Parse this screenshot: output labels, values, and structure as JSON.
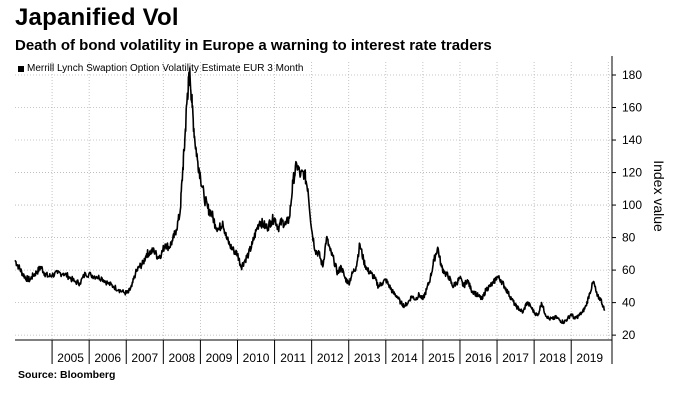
{
  "header": {
    "title": "Japanified Vol",
    "subtitle": "Death of bond volatility in Europe a warning to interest rate traders"
  },
  "footer": {
    "source": "Source: Bloomberg"
  },
  "chart_data": {
    "type": "line",
    "title": "Japanified Vol",
    "subtitle": "Death of bond volatility in Europe a warning to interest rate traders",
    "xlabel": "",
    "ylabel": "Index value",
    "xlim": [
      2004.0,
      2020.1
    ],
    "ylim": [
      17,
      188
    ],
    "yticks": [
      20,
      40,
      60,
      80,
      100,
      120,
      140,
      160,
      180
    ],
    "xtick_labels": [
      "2005",
      "2006",
      "2007",
      "2008",
      "2009",
      "2010",
      "2011",
      "2012",
      "2013",
      "2014",
      "2015",
      "2016",
      "2017",
      "2018",
      "2019"
    ],
    "grid": true,
    "legend_position": "top-left",
    "series": [
      {
        "name": "Merrill Lynch Swaption Option Volatility Estimate EUR 3 Month",
        "color": "#000000",
        "x": [
          2004.0,
          2004.1,
          2004.2,
          2004.3,
          2004.4,
          2004.5,
          2004.6,
          2004.7,
          2004.8,
          2004.9,
          2005.0,
          2005.15,
          2005.3,
          2005.45,
          2005.6,
          2005.75,
          2005.9,
          2006.05,
          2006.2,
          2006.35,
          2006.5,
          2006.65,
          2006.8,
          2006.95,
          2007.05,
          2007.15,
          2007.25,
          2007.35,
          2007.45,
          2007.55,
          2007.65,
          2007.75,
          2007.85,
          2007.95,
          2008.05,
          2008.15,
          2008.25,
          2008.35,
          2008.45,
          2008.52,
          2008.58,
          2008.64,
          2008.68,
          2008.72,
          2008.78,
          2008.85,
          2008.92,
          2009.0,
          2009.1,
          2009.2,
          2009.3,
          2009.4,
          2009.5,
          2009.6,
          2009.7,
          2009.8,
          2009.9,
          2010.0,
          2010.1,
          2010.2,
          2010.3,
          2010.4,
          2010.5,
          2010.6,
          2010.7,
          2010.8,
          2010.9,
          2011.0,
          2011.1,
          2011.2,
          2011.3,
          2011.4,
          2011.5,
          2011.6,
          2011.7,
          2011.8,
          2011.9,
          2012.0,
          2012.1,
          2012.2,
          2012.3,
          2012.4,
          2012.5,
          2012.6,
          2012.7,
          2012.8,
          2012.9,
          2013.0,
          2013.1,
          2013.2,
          2013.3,
          2013.4,
          2013.5,
          2013.6,
          2013.7,
          2013.8,
          2013.9,
          2014.0,
          2014.1,
          2014.2,
          2014.3,
          2014.4,
          2014.5,
          2014.6,
          2014.7,
          2014.8,
          2014.9,
          2015.0,
          2015.1,
          2015.2,
          2015.3,
          2015.4,
          2015.5,
          2015.6,
          2015.7,
          2015.8,
          2015.9,
          2016.0,
          2016.1,
          2016.2,
          2016.3,
          2016.4,
          2016.5,
          2016.6,
          2016.7,
          2016.8,
          2016.9,
          2017.0,
          2017.1,
          2017.2,
          2017.3,
          2017.4,
          2017.5,
          2017.6,
          2017.7,
          2017.8,
          2017.9,
          2018.0,
          2018.1,
          2018.2,
          2018.3,
          2018.4,
          2018.5,
          2018.6,
          2018.7,
          2018.8,
          2018.9,
          2019.0,
          2019.1,
          2019.2,
          2019.3,
          2019.4,
          2019.5,
          2019.6,
          2019.7,
          2019.8,
          2019.9
        ],
        "values": [
          66,
          62,
          58,
          55,
          54,
          57,
          59,
          62,
          58,
          56,
          57,
          58,
          58,
          56,
          53,
          52,
          58,
          57,
          56,
          55,
          52,
          50,
          48,
          46,
          46,
          50,
          58,
          62,
          64,
          70,
          71,
          72,
          68,
          70,
          76,
          74,
          78,
          85,
          95,
          120,
          140,
          165,
          175,
          180,
          160,
          140,
          128,
          118,
          105,
          98,
          95,
          88,
          85,
          90,
          80,
          75,
          72,
          70,
          62,
          66,
          70,
          76,
          84,
          90,
          88,
          86,
          90,
          92,
          86,
          90,
          88,
          92,
          115,
          125,
          118,
          120,
          110,
          85,
          72,
          70,
          62,
          80,
          72,
          66,
          58,
          62,
          55,
          52,
          58,
          62,
          76,
          66,
          60,
          58,
          55,
          50,
          52,
          54,
          50,
          46,
          44,
          40,
          38,
          40,
          44,
          42,
          45,
          42,
          48,
          55,
          66,
          74,
          62,
          58,
          56,
          50,
          52,
          55,
          50,
          54,
          48,
          46,
          44,
          42,
          48,
          50,
          52,
          56,
          54,
          50,
          46,
          42,
          38,
          36,
          34,
          40,
          38,
          34,
          32,
          40,
          33,
          30,
          30,
          31,
          29,
          28,
          30,
          33,
          30,
          32,
          34,
          38,
          46,
          53,
          44,
          42,
          35
        ]
      }
    ]
  }
}
